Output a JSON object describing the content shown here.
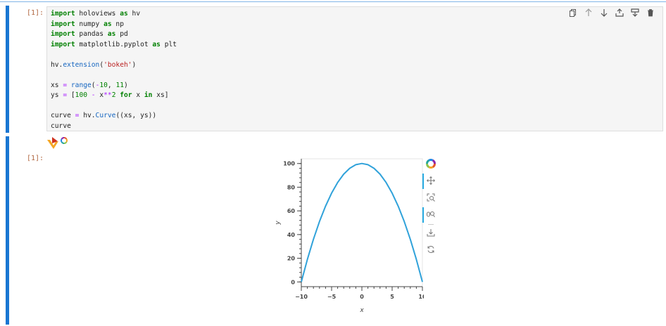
{
  "cells": [
    {
      "prompt": "[1]:",
      "code_lines": [
        [
          [
            "kw",
            "import"
          ],
          [
            "t",
            " holoviews "
          ],
          [
            "kw",
            "as"
          ],
          [
            "t",
            " hv"
          ]
        ],
        [
          [
            "kw",
            "import"
          ],
          [
            "t",
            " numpy "
          ],
          [
            "kw",
            "as"
          ],
          [
            "t",
            " np"
          ]
        ],
        [
          [
            "kw",
            "import"
          ],
          [
            "t",
            " pandas "
          ],
          [
            "kw",
            "as"
          ],
          [
            "t",
            " pd"
          ]
        ],
        [
          [
            "kw",
            "import"
          ],
          [
            "t",
            " matplotlib.pyplot "
          ],
          [
            "kw",
            "as"
          ],
          [
            "t",
            " plt"
          ]
        ],
        [],
        [
          [
            "t",
            "hv."
          ],
          [
            "fn",
            "extension"
          ],
          [
            "t",
            "("
          ],
          [
            "str",
            "'bokeh'"
          ],
          [
            "t",
            ")"
          ]
        ],
        [],
        [
          [
            "t",
            "xs "
          ],
          [
            "op",
            "="
          ],
          [
            "t",
            " "
          ],
          [
            "fn",
            "range"
          ],
          [
            "t",
            "("
          ],
          [
            "op",
            "-"
          ],
          [
            "num",
            "10"
          ],
          [
            "t",
            ", "
          ],
          [
            "num",
            "11"
          ],
          [
            "t",
            ")"
          ]
        ],
        [
          [
            "t",
            "ys "
          ],
          [
            "op",
            "="
          ],
          [
            "t",
            " ["
          ],
          [
            "num",
            "100"
          ],
          [
            "t",
            " "
          ],
          [
            "op",
            "-"
          ],
          [
            "t",
            " x"
          ],
          [
            "op",
            "**"
          ],
          [
            "num",
            "2"
          ],
          [
            "t",
            " "
          ],
          [
            "kw",
            "for"
          ],
          [
            "t",
            " x "
          ],
          [
            "kw",
            "in"
          ],
          [
            "t",
            " xs]"
          ]
        ],
        [],
        [
          [
            "t",
            "curve "
          ],
          [
            "op",
            "="
          ],
          [
            "t",
            " hv."
          ],
          [
            "fn",
            "Curve"
          ],
          [
            "t",
            "((xs, ys))"
          ]
        ],
        [
          [
            "t",
            "curve"
          ]
        ]
      ]
    },
    {
      "prompt": "[1]:"
    }
  ],
  "cell_toolbar": [
    "duplicate-icon",
    "move-up-icon",
    "move-down-icon",
    "insert-above-icon",
    "insert-below-icon",
    "delete-icon"
  ],
  "plot_toolbar": [
    "bokeh-logo",
    "pan-icon",
    "box-zoom-icon",
    "wheel-zoom-icon",
    "save-icon",
    "reset-icon"
  ],
  "chart_data": {
    "type": "line",
    "x": [
      -10,
      -9,
      -8,
      -7,
      -6,
      -5,
      -4,
      -3,
      -2,
      -1,
      0,
      1,
      2,
      3,
      4,
      5,
      6,
      7,
      8,
      9,
      10
    ],
    "y": [
      0,
      19,
      36,
      51,
      64,
      75,
      84,
      91,
      96,
      99,
      100,
      99,
      96,
      91,
      84,
      75,
      64,
      51,
      36,
      19,
      0
    ],
    "xlabel": "x",
    "ylabel": "y",
    "xlim": [
      -10,
      10
    ],
    "ylim": [
      -4,
      104
    ],
    "xticks": [
      -10,
      -5,
      0,
      5,
      10
    ],
    "yticks": [
      0,
      20,
      40,
      60,
      80,
      100
    ],
    "line_color": "#30a2da",
    "grid": false
  }
}
